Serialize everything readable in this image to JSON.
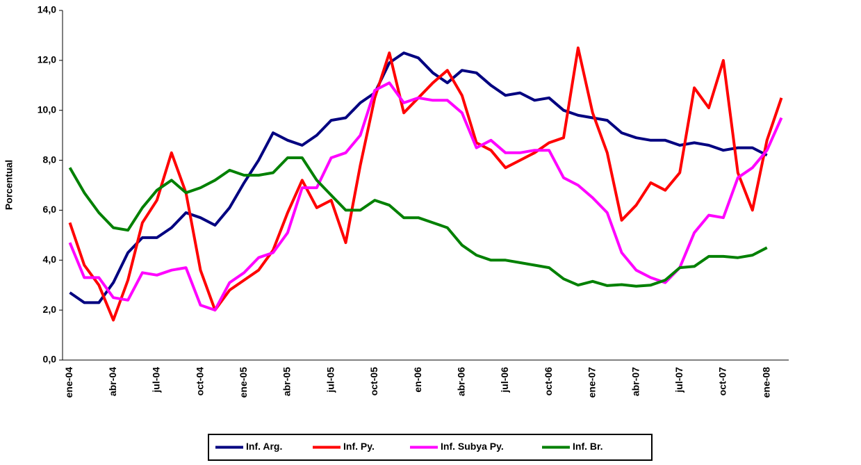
{
  "chart_data": {
    "type": "line",
    "y_label": "Porcentual",
    "categories": [
      "ene-04",
      null,
      null,
      "abr-04",
      null,
      null,
      "jul-04",
      null,
      null,
      "oct-04",
      null,
      null,
      "ene-05",
      null,
      null,
      "abr-05",
      null,
      null,
      "jul-05",
      null,
      null,
      "oct-05",
      null,
      null,
      "en-06",
      null,
      null,
      "abr-06",
      null,
      null,
      "jul-06",
      null,
      null,
      "oct-06",
      null,
      null,
      "ene-07",
      null,
      null,
      "abr-07",
      null,
      null,
      "jul-07",
      null,
      null,
      "oct-07",
      null,
      null,
      "ene-08",
      null
    ],
    "series": [
      {
        "name": "Inf. Arg.",
        "color": "#000080",
        "values": [
          2.7,
          2.3,
          2.3,
          3.1,
          4.3,
          4.9,
          4.9,
          5.3,
          5.9,
          5.7,
          5.4,
          6.1,
          7.1,
          8.0,
          9.1,
          8.8,
          8.6,
          9.0,
          9.6,
          9.7,
          10.3,
          10.7,
          11.9,
          12.3,
          12.1,
          11.5,
          11.1,
          11.6,
          11.5,
          11.0,
          10.6,
          10.7,
          10.4,
          10.5,
          10.0,
          9.8,
          9.7,
          9.6,
          9.1,
          8.9,
          8.8,
          8.8,
          8.6,
          8.7,
          8.6,
          8.4,
          8.5,
          8.5,
          8.2,
          null
        ]
      },
      {
        "name": "Inf. Py.",
        "color": "#ff0000",
        "values": [
          5.5,
          3.8,
          3.0,
          1.6,
          3.2,
          5.5,
          6.4,
          8.3,
          6.7,
          3.6,
          2.0,
          2.8,
          3.2,
          3.6,
          4.4,
          5.9,
          7.2,
          6.1,
          6.4,
          4.7,
          7.8,
          10.5,
          12.3,
          9.9,
          10.5,
          11.1,
          11.6,
          10.6,
          8.7,
          8.4,
          7.7,
          8.0,
          8.3,
          8.7,
          8.9,
          12.5,
          9.9,
          8.3,
          5.6,
          6.2,
          7.1,
          6.8,
          7.5,
          10.9,
          10.1,
          12.0,
          7.5,
          6.0,
          8.8,
          10.5
        ]
      },
      {
        "name": "Inf. Subya Py.",
        "color": "#ff00ff",
        "values": [
          4.7,
          3.3,
          3.3,
          2.5,
          2.4,
          3.5,
          3.4,
          3.6,
          3.7,
          2.2,
          2.0,
          3.1,
          3.5,
          4.1,
          4.3,
          5.1,
          6.9,
          6.9,
          8.1,
          8.3,
          9.0,
          10.8,
          11.1,
          10.3,
          10.5,
          10.4,
          10.4,
          9.9,
          8.5,
          8.8,
          8.3,
          8.3,
          8.4,
          8.4,
          7.3,
          7.0,
          6.5,
          5.9,
          4.3,
          3.6,
          3.3,
          3.1,
          3.7,
          5.1,
          5.8,
          5.7,
          7.3,
          7.7,
          8.4,
          9.7
        ]
      },
      {
        "name": "Inf. Br.",
        "color": "#008000",
        "values": [
          7.7,
          6.7,
          5.9,
          5.3,
          5.2,
          6.1,
          6.8,
          7.2,
          6.7,
          6.9,
          7.2,
          7.6,
          7.4,
          7.4,
          7.5,
          8.1,
          8.1,
          7.2,
          6.6,
          6.0,
          6.0,
          6.4,
          6.2,
          5.7,
          5.7,
          5.5,
          5.3,
          4.6,
          4.2,
          4.0,
          4.0,
          3.9,
          3.8,
          3.7,
          3.25,
          3.0,
          3.15,
          2.98,
          3.02,
          2.96,
          3.0,
          3.2,
          3.7,
          3.75,
          4.15,
          4.15,
          4.1,
          4.2,
          4.5,
          null
        ]
      }
    ],
    "ylim": [
      0,
      14
    ],
    "yticks": [
      {
        "value": 0,
        "label": "0,0"
      },
      {
        "value": 2,
        "label": "2,0"
      },
      {
        "value": 4,
        "label": "4,0"
      },
      {
        "value": 6,
        "label": "6,0"
      },
      {
        "value": 8,
        "label": "8,0"
      },
      {
        "value": 10,
        "label": "10,0"
      },
      {
        "value": 12,
        "label": "12,0"
      },
      {
        "value": 14,
        "label": "14,0"
      }
    ],
    "grid": false,
    "legend": "bottom"
  }
}
